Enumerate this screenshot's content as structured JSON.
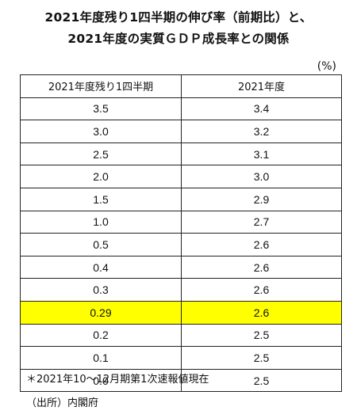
{
  "title_line1": "2021年度残り1四半期の伸び率（前期比）と、",
  "title_line2": "2021年度の実質ＧＤＰ成長率との関係",
  "unit": "(%)",
  "highlight_color": "#ffff00",
  "chart_data": {
    "type": "table",
    "columns": [
      "2021年度残り1四半期",
      "2021年度"
    ],
    "rows": [
      {
        "q": "3.5",
        "fy": "3.4",
        "highlight": false
      },
      {
        "q": "3.0",
        "fy": "3.2",
        "highlight": false
      },
      {
        "q": "2.5",
        "fy": "3.1",
        "highlight": false
      },
      {
        "q": "2.0",
        "fy": "3.0",
        "highlight": false
      },
      {
        "q": "1.5",
        "fy": "2.9",
        "highlight": false
      },
      {
        "q": "1.0",
        "fy": "2.7",
        "highlight": false
      },
      {
        "q": "0.5",
        "fy": "2.6",
        "highlight": false
      },
      {
        "q": "0.4",
        "fy": "2.6",
        "highlight": false
      },
      {
        "q": "0.3",
        "fy": "2.6",
        "highlight": false
      },
      {
        "q": "0.29",
        "fy": "2.6",
        "highlight": true
      },
      {
        "q": "0.2",
        "fy": "2.5",
        "highlight": false
      },
      {
        "q": "0.1",
        "fy": "2.5",
        "highlight": false
      },
      {
        "q": "0.0",
        "fy": "2.5",
        "highlight": false
      }
    ]
  },
  "note": "＊2021年10～12月期第1次速報値現在",
  "source": "（出所）内閣府"
}
